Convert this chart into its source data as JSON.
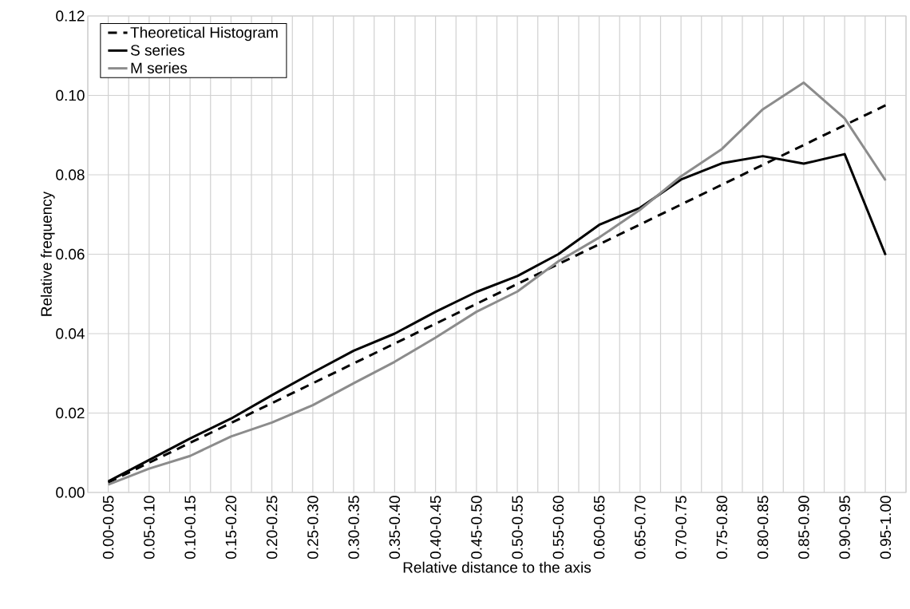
{
  "chart_data": {
    "type": "line",
    "xlabel": "Relative distance to the axis",
    "ylabel": "Relative frequency",
    "categories": [
      "0.00-0.05",
      "0.05-0.10",
      "0.10-0.15",
      "0.15-0.20",
      "0.20-0.25",
      "0.25-0.30",
      "0.30-0.35",
      "0.35-0.40",
      "0.40-0.45",
      "0.45-0.50",
      "0.50-0.55",
      "0.55-0.60",
      "0.60-0.65",
      "0.65-0.70",
      "0.70-0.75",
      "0.75-0.80",
      "0.80-0.85",
      "0.85-0.90",
      "0.90-0.95",
      "0.95-1.00"
    ],
    "series": [
      {
        "name": "Theoretical Histogram",
        "color": "#000000",
        "line_style": "dashed",
        "values": [
          0.0025,
          0.0075,
          0.0125,
          0.0175,
          0.0225,
          0.0275,
          0.0325,
          0.0375,
          0.0425,
          0.0475,
          0.0525,
          0.0575,
          0.0625,
          0.0675,
          0.0725,
          0.0775,
          0.0825,
          0.0875,
          0.0925,
          0.0975
        ]
      },
      {
        "name": "S series",
        "color": "#000000",
        "line_style": "solid",
        "values": [
          0.0028,
          0.0082,
          0.0136,
          0.0186,
          0.0245,
          0.0302,
          0.0357,
          0.04,
          0.0455,
          0.0505,
          0.0545,
          0.06,
          0.0674,
          0.0717,
          0.0788,
          0.0829,
          0.0847,
          0.0828,
          0.0852,
          0.0598
        ]
      },
      {
        "name": "M series",
        "color": "#8c8c8c",
        "line_style": "solid",
        "values": [
          0.002,
          0.006,
          0.0092,
          0.0141,
          0.0176,
          0.022,
          0.0275,
          0.0329,
          0.039,
          0.0455,
          0.0506,
          0.0582,
          0.0642,
          0.0712,
          0.0796,
          0.0865,
          0.0965,
          0.1032,
          0.0942,
          0.0786
        ]
      }
    ],
    "ylim": [
      0,
      0.12
    ],
    "yticks": [
      {
        "value": 0,
        "label": "0.00"
      },
      {
        "value": 0.02,
        "label": "0.02"
      },
      {
        "value": 0.04,
        "label": "0.04"
      },
      {
        "value": 0.06,
        "label": "0.06"
      },
      {
        "value": 0.08,
        "label": "0.08"
      },
      {
        "value": 0.1,
        "label": "0.10"
      },
      {
        "value": 0.12,
        "label": "0.12"
      }
    ],
    "grid": true,
    "legend": "top left"
  }
}
